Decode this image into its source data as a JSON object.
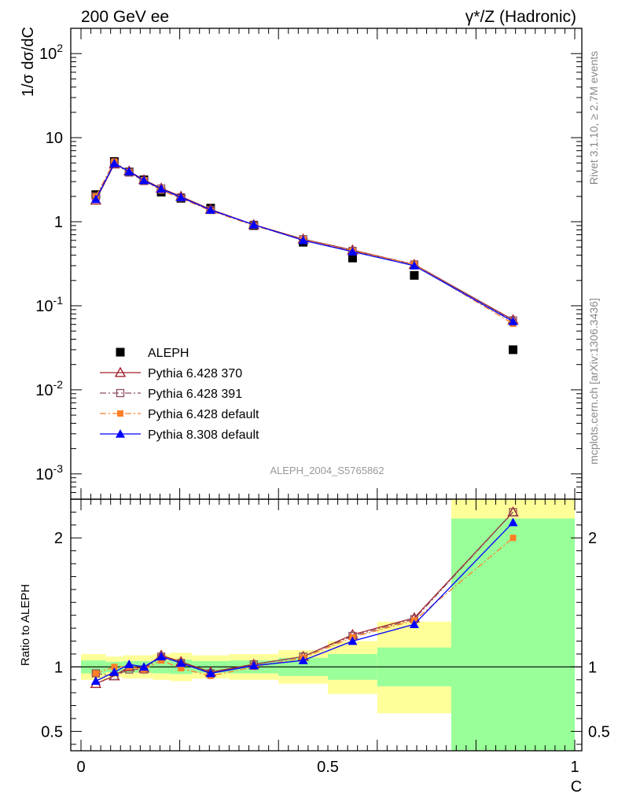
{
  "header": {
    "left": "200 GeV ee",
    "right": "γ*/Z (Hadronic)"
  },
  "side_labels": {
    "rivet": "Rivet 3.1.10, ≥ 2.7M events",
    "mcplots": "mcplots.cern.ch [arXiv:1306.3436]"
  },
  "watermark": "ALEPH_2004_S5765862",
  "colors": {
    "aleph": "#000000",
    "p370": "#a0212b",
    "p391": "#8b4b5e",
    "p6def": "#ff7f27",
    "p8def": "#0000ff",
    "band_yellow": "#ffff99",
    "band_green": "#99ff99"
  },
  "chart_data": [
    {
      "type": "scatter",
      "panel": "main",
      "ylabel": "1/σ  dσ/dC",
      "yscale": "log",
      "xlim": [
        0,
        1
      ],
      "ylim": [
        0.0005,
        200
      ],
      "y_tick_labels": [
        "10^-3",
        "10^-2",
        "10^-1",
        "1",
        "10",
        "10^2"
      ],
      "x_bins": [
        [
          0.0,
          0.05
        ],
        [
          0.05,
          0.085
        ],
        [
          0.085,
          0.11
        ],
        [
          0.11,
          0.145
        ],
        [
          0.145,
          0.18
        ],
        [
          0.18,
          0.225
        ],
        [
          0.225,
          0.3
        ],
        [
          0.3,
          0.4
        ],
        [
          0.4,
          0.5
        ],
        [
          0.5,
          0.6
        ],
        [
          0.6,
          0.75
        ],
        [
          0.75,
          1.0
        ]
      ],
      "x": [
        0.03,
        0.0675,
        0.0975,
        0.1275,
        0.1625,
        0.2025,
        0.2625,
        0.35,
        0.45,
        0.55,
        0.675,
        0.875
      ],
      "series": [
        {
          "name": "ALEPH",
          "marker": "filled-square",
          "values": [
            2.1,
            5.2,
            3.9,
            3.15,
            2.25,
            1.9,
            1.45,
            0.9,
            0.57,
            0.37,
            0.23,
            0.03
          ]
        },
        {
          "name": "Pythia 6.428 370",
          "marker": "open-triangle",
          "line": "solid",
          "values": [
            1.8,
            4.85,
            4.0,
            3.15,
            2.5,
            2.0,
            1.4,
            0.92,
            0.62,
            0.46,
            0.31,
            0.068
          ]
        },
        {
          "name": "Pythia 6.428 391",
          "marker": "open-square",
          "line": "dash-dot",
          "values": [
            2.0,
            4.9,
            3.85,
            3.05,
            2.48,
            1.95,
            1.38,
            0.92,
            0.62,
            0.45,
            0.31,
            0.067
          ]
        },
        {
          "name": "Pythia 6.428 default",
          "marker": "filled-small-square",
          "line": "dash-dot",
          "values": [
            2.0,
            5.2,
            3.9,
            3.1,
            2.35,
            1.9,
            1.35,
            0.9,
            0.61,
            0.45,
            0.31,
            0.061
          ]
        },
        {
          "name": "Pythia 8.308 default",
          "marker": "filled-triangle",
          "line": "solid",
          "values": [
            1.85,
            4.95,
            3.95,
            3.1,
            2.45,
            1.95,
            1.38,
            0.92,
            0.6,
            0.44,
            0.3,
            0.065
          ]
        }
      ]
    },
    {
      "type": "line",
      "panel": "ratio",
      "ylabel": "Ratio to ALEPH",
      "xlabel": "C",
      "xlim": [
        0,
        1
      ],
      "ylim": [
        0.35,
        2.3
      ],
      "y_ticks": [
        0.5,
        1,
        2
      ],
      "y_tick_labels": [
        "0.5",
        "1",
        "2"
      ],
      "x_ticks": [
        0,
        0.5,
        1
      ],
      "x_tick_labels": [
        "0",
        "0.5",
        "1"
      ],
      "reference_line": 1,
      "bands": {
        "yellow": [
          [
            0.9,
            1.1
          ],
          [
            0.92,
            1.08
          ],
          [
            0.91,
            1.09
          ],
          [
            0.91,
            1.09
          ],
          [
            0.9,
            1.1
          ],
          [
            0.89,
            1.11
          ],
          [
            0.91,
            1.09
          ],
          [
            0.9,
            1.1
          ],
          [
            0.87,
            1.13
          ],
          [
            0.79,
            1.2
          ],
          [
            0.64,
            1.35
          ],
          [
            0.3,
            2.35
          ]
        ],
        "green": [
          [
            0.95,
            1.05
          ],
          [
            0.96,
            1.04
          ],
          [
            0.955,
            1.045
          ],
          [
            0.955,
            1.045
          ],
          [
            0.95,
            1.05
          ],
          [
            0.945,
            1.055
          ],
          [
            0.955,
            1.045
          ],
          [
            0.95,
            1.05
          ],
          [
            0.93,
            1.07
          ],
          [
            0.9,
            1.1
          ],
          [
            0.85,
            1.15
          ],
          [
            0.3,
            2.15
          ]
        ]
      },
      "series": [
        {
          "name": "Pythia 6.428 370",
          "values": [
            0.87,
            0.93,
            1.0,
            0.99,
            1.09,
            1.04,
            0.96,
            1.02,
            1.08,
            1.25,
            1.38,
            2.2
          ]
        },
        {
          "name": "Pythia 6.428 391",
          "values": [
            0.95,
            0.93,
            0.98,
            0.98,
            1.08,
            1.03,
            0.95,
            1.02,
            1.08,
            1.24,
            1.37,
            2.2
          ]
        },
        {
          "name": "Pythia 6.428 default",
          "values": [
            0.95,
            1.0,
            1.0,
            0.98,
            1.05,
            0.99,
            0.93,
            1.0,
            1.07,
            1.23,
            1.36,
            2.0
          ]
        },
        {
          "name": "Pythia 8.308 default",
          "values": [
            0.89,
            0.96,
            1.02,
            1.0,
            1.08,
            1.03,
            0.95,
            1.01,
            1.05,
            1.2,
            1.33,
            2.12
          ]
        }
      ]
    }
  ]
}
